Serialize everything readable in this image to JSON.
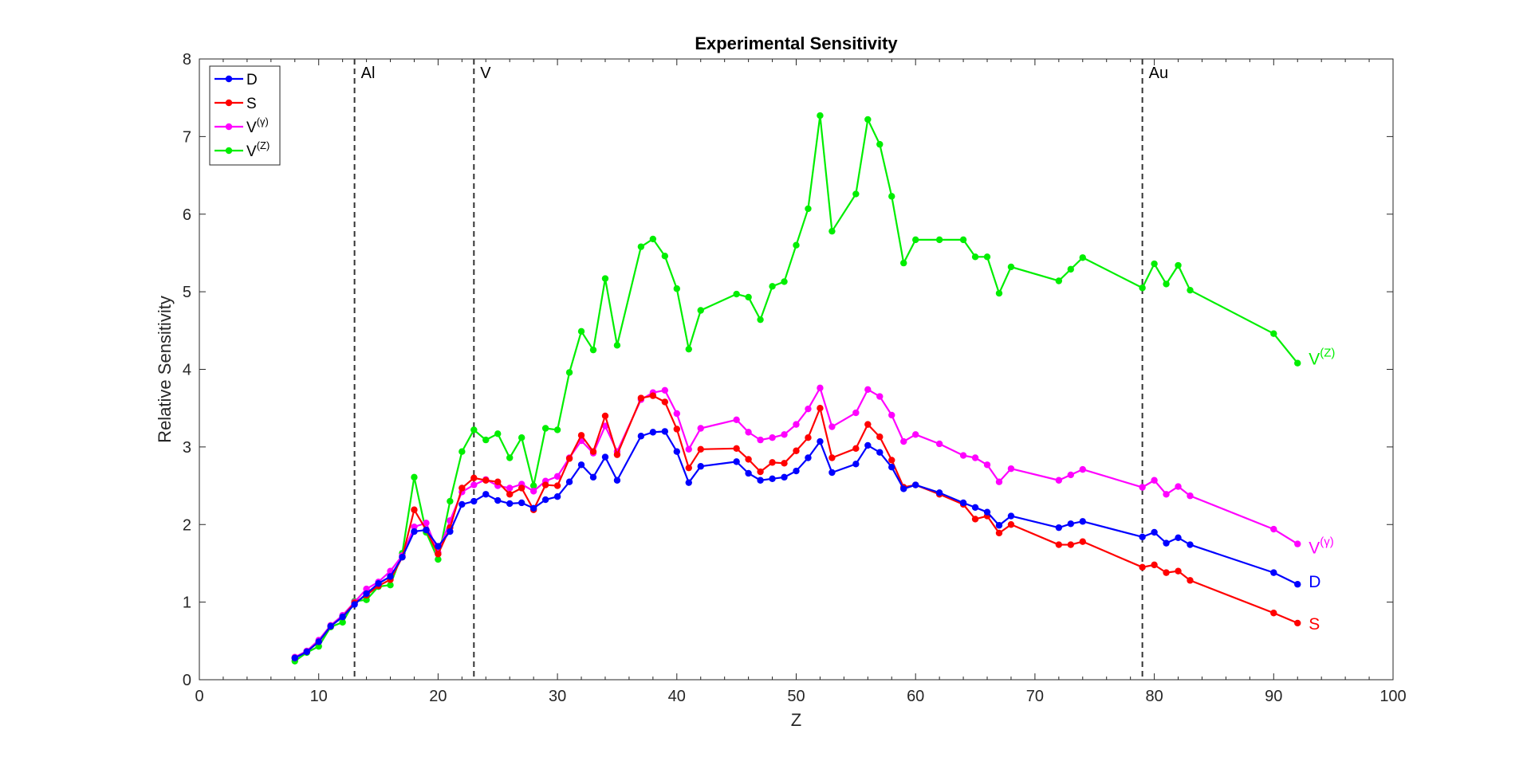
{
  "chart_data": {
    "type": "line",
    "title": "Experimental Sensitivity",
    "xlabel": "Z",
    "ylabel": "Relative Sensitivity",
    "xlim": [
      0,
      100
    ],
    "ylim": [
      0,
      8
    ],
    "xticks": [
      0,
      10,
      20,
      30,
      40,
      50,
      60,
      70,
      80,
      90,
      100
    ],
    "yticks": [
      0,
      1,
      2,
      3,
      4,
      5,
      6,
      7,
      8
    ],
    "grid": false,
    "legend_position": "top-left",
    "vertical_lines": [
      {
        "x": 13,
        "label": "Al"
      },
      {
        "x": 23,
        "label": "V"
      },
      {
        "x": 79,
        "label": "Au"
      }
    ],
    "x": [
      8,
      9,
      10,
      11,
      12,
      13,
      14,
      15,
      16,
      17,
      18,
      19,
      20,
      21,
      22,
      23,
      24,
      25,
      26,
      27,
      28,
      29,
      30,
      31,
      32,
      33,
      34,
      35,
      37,
      38,
      39,
      40,
      41,
      42,
      45,
      46,
      47,
      48,
      49,
      50,
      51,
      52,
      53,
      55,
      56,
      57,
      58,
      59,
      60,
      62,
      64,
      65,
      66,
      67,
      68,
      72,
      73,
      74,
      79,
      80,
      81,
      82,
      83,
      90,
      92
    ],
    "series": [
      {
        "name": "D",
        "color": "#0000ff",
        "end_label": "D",
        "end_label_main": "D",
        "end_label_sup": "",
        "values": [
          0.28,
          0.36,
          0.49,
          0.69,
          0.81,
          0.97,
          1.11,
          1.24,
          1.33,
          1.58,
          1.91,
          1.93,
          1.72,
          1.91,
          2.26,
          2.3,
          2.39,
          2.31,
          2.27,
          2.28,
          2.21,
          2.32,
          2.36,
          2.55,
          2.77,
          2.61,
          2.87,
          2.57,
          3.14,
          3.19,
          3.2,
          2.94,
          2.54,
          2.75,
          2.81,
          2.66,
          2.57,
          2.59,
          2.61,
          2.69,
          2.86,
          3.07,
          2.67,
          2.78,
          3.02,
          2.93,
          2.74,
          2.46,
          2.51,
          2.41,
          2.28,
          2.22,
          2.16,
          1.99,
          2.11,
          1.96,
          2.01,
          2.04,
          1.84,
          1.9,
          1.76,
          1.83,
          1.74,
          1.38,
          1.23
        ]
      },
      {
        "name": "S",
        "color": "#ff0000",
        "end_label": "S",
        "end_label_main": "S",
        "end_label_sup": "",
        "values": [
          0.28,
          0.36,
          0.49,
          0.69,
          0.81,
          0.99,
          1.09,
          1.21,
          1.29,
          1.58,
          2.19,
          1.93,
          1.62,
          1.96,
          2.47,
          2.6,
          2.57,
          2.55,
          2.39,
          2.47,
          2.19,
          2.51,
          2.5,
          2.85,
          3.15,
          2.94,
          3.4,
          2.9,
          3.63,
          3.66,
          3.58,
          3.23,
          2.73,
          2.97,
          2.98,
          2.84,
          2.68,
          2.8,
          2.79,
          2.95,
          3.12,
          3.5,
          2.86,
          2.98,
          3.29,
          3.13,
          2.83,
          2.48,
          2.51,
          2.39,
          2.26,
          2.07,
          2.11,
          1.89,
          2.0,
          1.74,
          1.74,
          1.78,
          1.45,
          1.48,
          1.38,
          1.4,
          1.28,
          0.86,
          0.73
        ]
      },
      {
        "name": "V(γ)",
        "color": "#ff00ff",
        "end_label": "V(γ)",
        "end_label_main": "V",
        "end_label_sup": "(γ)",
        "values": [
          0.29,
          0.37,
          0.51,
          0.7,
          0.83,
          1.0,
          1.17,
          1.26,
          1.4,
          1.6,
          1.97,
          2.02,
          1.64,
          2.05,
          2.42,
          2.51,
          2.58,
          2.5,
          2.47,
          2.52,
          2.43,
          2.56,
          2.62,
          2.86,
          3.08,
          2.92,
          3.27,
          2.94,
          3.61,
          3.7,
          3.73,
          3.43,
          2.97,
          3.24,
          3.35,
          3.19,
          3.09,
          3.12,
          3.16,
          3.29,
          3.49,
          3.76,
          3.26,
          3.44,
          3.74,
          3.65,
          3.41,
          3.07,
          3.16,
          3.04,
          2.89,
          2.86,
          2.77,
          2.55,
          2.72,
          2.57,
          2.64,
          2.71,
          2.48,
          2.57,
          2.39,
          2.49,
          2.37,
          1.94,
          1.75
        ]
      },
      {
        "name": "V(Z)",
        "color": "#00ee00",
        "end_label": "V(Z)",
        "end_label_main": "V",
        "end_label_sup": "(Z)",
        "values": [
          0.24,
          0.35,
          0.43,
          0.68,
          0.74,
          1.01,
          1.03,
          1.2,
          1.22,
          1.63,
          2.61,
          1.9,
          1.55,
          2.3,
          2.94,
          3.22,
          3.09,
          3.17,
          2.86,
          3.12,
          2.5,
          3.24,
          3.22,
          3.96,
          4.49,
          4.25,
          5.17,
          4.31,
          5.58,
          5.68,
          5.46,
          5.04,
          4.26,
          4.76,
          4.97,
          4.93,
          4.64,
          5.07,
          5.13,
          5.6,
          6.07,
          7.27,
          5.78,
          6.26,
          7.22,
          6.9,
          6.23,
          5.37,
          5.67,
          5.67,
          5.67,
          5.45,
          5.45,
          4.98,
          5.32,
          5.14,
          5.29,
          5.44,
          5.05,
          5.36,
          5.1,
          5.34,
          5.02,
          4.46,
          4.08
        ]
      }
    ]
  }
}
